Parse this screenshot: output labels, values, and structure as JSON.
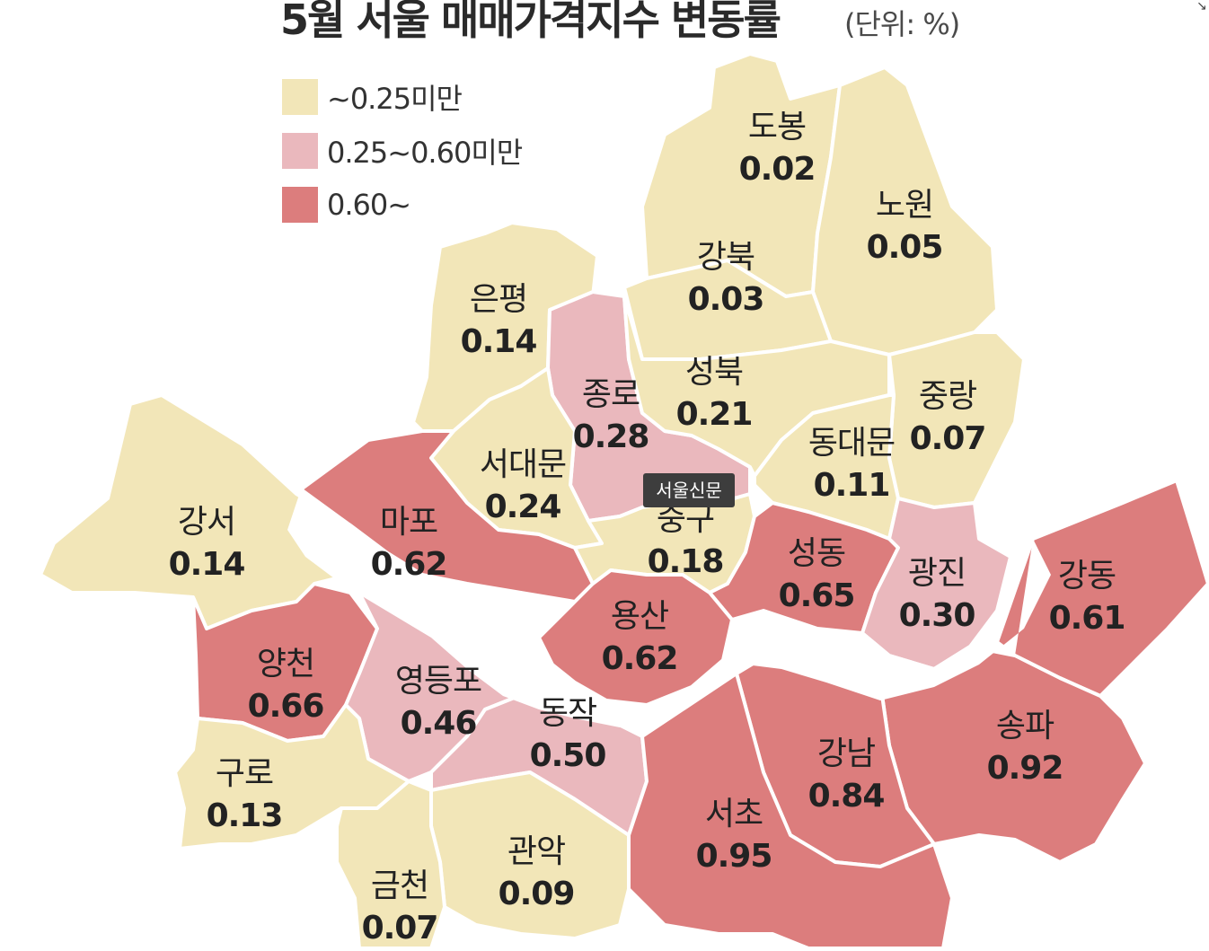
{
  "title": "5월 서울 매매가격지수 변동률",
  "unit": "(단위: %)",
  "watermark": "서울신문",
  "colors": {
    "low": "#f2e6b8",
    "mid": "#eab8bd",
    "high": "#dc7d7d",
    "river": "#ffffff",
    "border": "#ffffff"
  },
  "legend": [
    {
      "label": "~0.25미만",
      "class": "low"
    },
    {
      "label": "0.25~0.60미만",
      "class": "mid"
    },
    {
      "label": "0.60~",
      "class": "high"
    }
  ],
  "districts": [
    {
      "id": "dobong",
      "name": "도봉",
      "value": "0.02",
      "class": "low"
    },
    {
      "id": "nowon",
      "name": "노원",
      "value": "0.05",
      "class": "low"
    },
    {
      "id": "gangbuk",
      "name": "강북",
      "value": "0.03",
      "class": "low"
    },
    {
      "id": "eunpyeong",
      "name": "은평",
      "value": "0.14",
      "class": "low"
    },
    {
      "id": "jongno",
      "name": "종로",
      "value": "0.28",
      "class": "mid"
    },
    {
      "id": "seongbuk",
      "name": "성북",
      "value": "0.21",
      "class": "low"
    },
    {
      "id": "jungnang",
      "name": "중랑",
      "value": "0.07",
      "class": "low"
    },
    {
      "id": "dongdaemun",
      "name": "동대문",
      "value": "0.11",
      "class": "low"
    },
    {
      "id": "seodaemun",
      "name": "서대문",
      "value": "0.24",
      "class": "low"
    },
    {
      "id": "mapo",
      "name": "마포",
      "value": "0.62",
      "class": "high"
    },
    {
      "id": "junggu",
      "name": "중구",
      "value": "0.18",
      "class": "low"
    },
    {
      "id": "gangseo",
      "name": "강서",
      "value": "0.14",
      "class": "low"
    },
    {
      "id": "seongdong",
      "name": "성동",
      "value": "0.65",
      "class": "high"
    },
    {
      "id": "gwangjin",
      "name": "광진",
      "value": "0.30",
      "class": "mid"
    },
    {
      "id": "gangdong",
      "name": "강동",
      "value": "0.61",
      "class": "high"
    },
    {
      "id": "yongsan",
      "name": "용산",
      "value": "0.62",
      "class": "high"
    },
    {
      "id": "yangcheon",
      "name": "양천",
      "value": "0.66",
      "class": "high"
    },
    {
      "id": "yeongdeungpo",
      "name": "영등포",
      "value": "0.46",
      "class": "mid"
    },
    {
      "id": "dongjak",
      "name": "동작",
      "value": "0.50",
      "class": "mid"
    },
    {
      "id": "songpa",
      "name": "송파",
      "value": "0.92",
      "class": "high"
    },
    {
      "id": "gangnam",
      "name": "강남",
      "value": "0.84",
      "class": "high"
    },
    {
      "id": "guro",
      "name": "구로",
      "value": "0.13",
      "class": "low"
    },
    {
      "id": "seocho",
      "name": "서초",
      "value": "0.95",
      "class": "high"
    },
    {
      "id": "gwanak",
      "name": "관악",
      "value": "0.09",
      "class": "low"
    },
    {
      "id": "geumcheon",
      "name": "금천",
      "value": "0.07",
      "class": "low"
    }
  ]
}
